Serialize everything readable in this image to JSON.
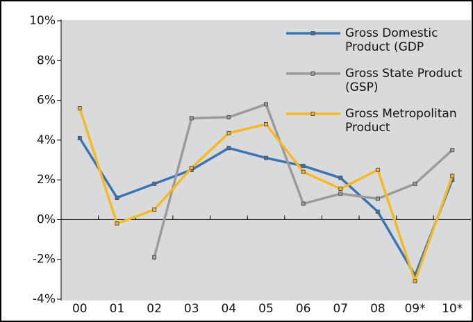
{
  "chart_data": {
    "type": "line",
    "categories": [
      "00",
      "01",
      "02",
      "03",
      "04",
      "05",
      "06",
      "07",
      "08",
      "09*",
      "10*"
    ],
    "series": [
      {
        "name": "Gross Domestic Product (GDP",
        "color": "#3b74b2",
        "values": [
          4.1,
          1.1,
          1.8,
          2.5,
          3.6,
          3.1,
          2.7,
          2.1,
          0.4,
          -2.8,
          2.0
        ]
      },
      {
        "name": "Gross State Product (GSP)",
        "color": "#9b9b9b",
        "values": [
          null,
          null,
          -1.9,
          5.1,
          5.15,
          5.8,
          0.8,
          1.3,
          1.05,
          1.8,
          3.5
        ]
      },
      {
        "name": "Gross Metropolitan Product",
        "color": "#f6b920",
        "values": [
          5.6,
          -0.2,
          0.5,
          2.6,
          4.35,
          4.8,
          2.4,
          1.55,
          2.5,
          -3.1,
          2.2
        ]
      }
    ],
    "ylim": [
      -4,
      10
    ],
    "yticks": [
      {
        "value": -4,
        "label": "-4%"
      },
      {
        "value": -2,
        "label": "-2%"
      },
      {
        "value": 0,
        "label": "0%"
      },
      {
        "value": 2,
        "label": "2%"
      },
      {
        "value": 4,
        "label": "4%"
      },
      {
        "value": 6,
        "label": "6%"
      },
      {
        "value": 8,
        "label": "8%"
      },
      {
        "value": 10,
        "label": "10%"
      }
    ],
    "legend": "top-right"
  }
}
